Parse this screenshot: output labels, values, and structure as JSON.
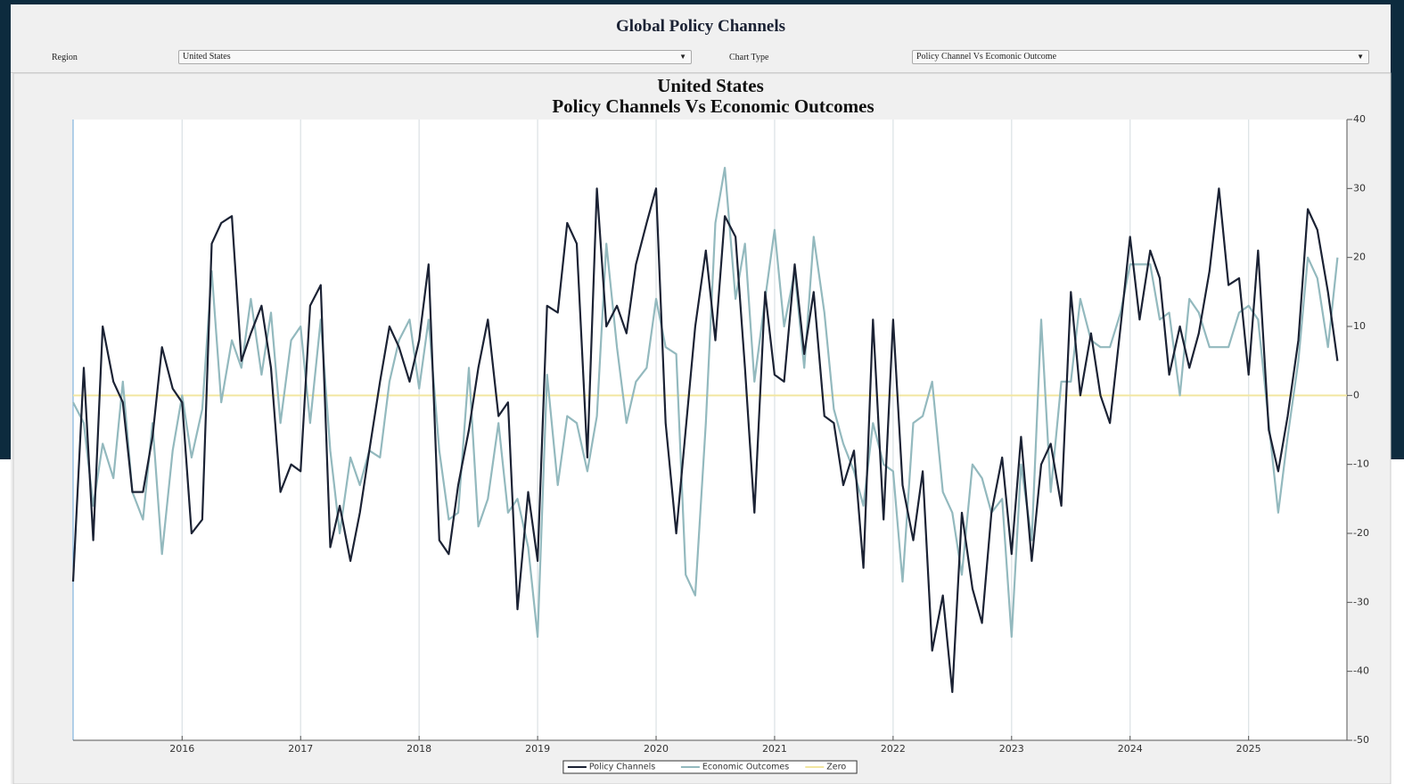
{
  "header": {
    "title": "Global Policy Channels"
  },
  "controls": [
    {
      "label": "Region",
      "value": "United States"
    },
    {
      "label": "Chart Type",
      "value": "Policy Channel Vs Ecomonic Outcome"
    }
  ],
  "chart_data": {
    "type": "line",
    "title": "United States",
    "subtitle": "Policy Channels Vs Economic Outcomes",
    "x": [
      2015.08,
      2015.17,
      2015.25,
      2015.33,
      2015.42,
      2015.5,
      2015.58,
      2015.67,
      2015.75,
      2015.83,
      2015.92,
      2016,
      2016.08,
      2016.17,
      2016.25,
      2016.33,
      2016.42,
      2016.5,
      2016.58,
      2016.67,
      2016.75,
      2016.83,
      2016.92,
      2017,
      2017.08,
      2017.17,
      2017.25,
      2017.33,
      2017.42,
      2017.5,
      2017.58,
      2017.67,
      2017.75,
      2017.83,
      2017.92,
      2018,
      2018.08,
      2018.17,
      2018.25,
      2018.33,
      2018.42,
      2018.5,
      2018.58,
      2018.67,
      2018.75,
      2018.83,
      2018.92,
      2019,
      2019.08,
      2019.17,
      2019.25,
      2019.33,
      2019.42,
      2019.5,
      2019.58,
      2019.67,
      2019.75,
      2019.83,
      2019.92,
      2020,
      2020.08,
      2020.17,
      2020.25,
      2020.33,
      2020.42,
      2020.5,
      2020.58,
      2020.67,
      2020.75,
      2020.83,
      2020.92,
      2021,
      2021.08,
      2021.17,
      2021.25,
      2021.33,
      2021.42,
      2021.5,
      2021.58,
      2021.67,
      2021.75,
      2021.83,
      2021.92,
      2022,
      2022.08,
      2022.17,
      2022.25,
      2022.33,
      2022.42,
      2022.5,
      2022.58,
      2022.67,
      2022.75,
      2022.83,
      2022.92,
      2023,
      2023.08,
      2023.17,
      2023.25,
      2023.33,
      2023.42,
      2023.5,
      2023.58,
      2023.67,
      2023.75,
      2023.83,
      2023.92,
      2024,
      2024.08,
      2024.17,
      2024.25,
      2024.33,
      2024.42,
      2024.5,
      2024.58,
      2024.67,
      2024.75,
      2024.83,
      2024.92,
      2025,
      2025.08,
      2025.17,
      2025.25,
      2025.33,
      2025.42,
      2025.5,
      2025.58,
      2025.67,
      2025.75
    ],
    "series": [
      {
        "name": "Policy Channels",
        "color": "#1b2234",
        "values": [
          -27,
          4,
          -21,
          10,
          2,
          -1,
          -14,
          -14,
          -6,
          7,
          1,
          -1,
          -20,
          -18,
          22,
          25,
          26,
          5,
          9,
          13,
          4,
          -14,
          -10,
          -11,
          13,
          16,
          -22,
          -16,
          -24,
          -17,
          -8,
          2,
          10,
          7,
          2,
          8,
          19,
          -21,
          -23,
          -13,
          -5,
          4,
          11,
          -3,
          -1,
          -31,
          -14,
          -24,
          13,
          12,
          25,
          22,
          -9,
          30,
          10,
          13,
          9,
          19,
          25,
          30,
          -4,
          -20,
          -5,
          10,
          21,
          8,
          26,
          23,
          4,
          -17,
          15,
          3,
          2,
          19,
          6,
          15,
          -3,
          -4,
          -13,
          -8,
          -25,
          11,
          -18,
          11,
          -13,
          -21,
          -11,
          -37,
          -29,
          -43,
          -17,
          -28,
          -33,
          -17,
          -9,
          -23,
          -6,
          -24,
          -10,
          -7,
          -16,
          15,
          0,
          9,
          0,
          -4,
          10,
          23,
          11,
          21,
          17,
          3,
          10,
          4,
          9,
          18,
          30,
          16,
          17,
          3,
          21,
          -5,
          -11,
          -3,
          8,
          27,
          24,
          15,
          5
        ]
      },
      {
        "name": "Economic Outcomes",
        "color": "#93b9be",
        "values": [
          -1,
          -4,
          -16,
          -7,
          -12,
          2,
          -14,
          -18,
          -4,
          -23,
          -8,
          0,
          -9,
          -2,
          18,
          -1,
          8,
          4,
          14,
          3,
          12,
          -4,
          8,
          10,
          -4,
          11,
          -8,
          -20,
          -9,
          -13,
          -8,
          -9,
          2,
          8,
          11,
          1,
          11,
          -8,
          -18,
          -17,
          4,
          -19,
          -15,
          -4,
          -17,
          -15,
          -22,
          -35,
          3,
          -13,
          -3,
          -4,
          -11,
          -3,
          22,
          7,
          -4,
          2,
          4,
          14,
          7,
          6,
          -26,
          -29,
          -4,
          25,
          33,
          14,
          22,
          2,
          14,
          24,
          10,
          18,
          4,
          23,
          12,
          -2,
          -7,
          -11,
          -16,
          -4,
          -10,
          -11,
          -27,
          -4,
          -3,
          2,
          -14,
          -17,
          -26,
          -10,
          -12,
          -17,
          -15,
          -35,
          -10,
          -21,
          11,
          -14,
          2,
          2,
          14,
          8,
          7,
          7,
          12,
          19,
          19,
          19,
          11,
          12,
          0,
          14,
          12,
          7,
          7,
          7,
          12,
          13,
          11,
          -4,
          -17,
          -6,
          5,
          20,
          17,
          7,
          20
        ]
      }
    ],
    "reference_lines": [
      {
        "name": "Zero",
        "color": "#f2e6a0",
        "value": 0
      }
    ],
    "xlim": [
      2015.08,
      2025.83
    ],
    "xticks": [
      2016,
      2017,
      2018,
      2019,
      2020,
      2021,
      2022,
      2023,
      2024,
      2025
    ],
    "ylim": [
      -50,
      40
    ],
    "yticks": [
      -50,
      -40,
      -30,
      -20,
      -10,
      0,
      10,
      20,
      30,
      40
    ],
    "grid": true,
    "legend": "bottom"
  }
}
